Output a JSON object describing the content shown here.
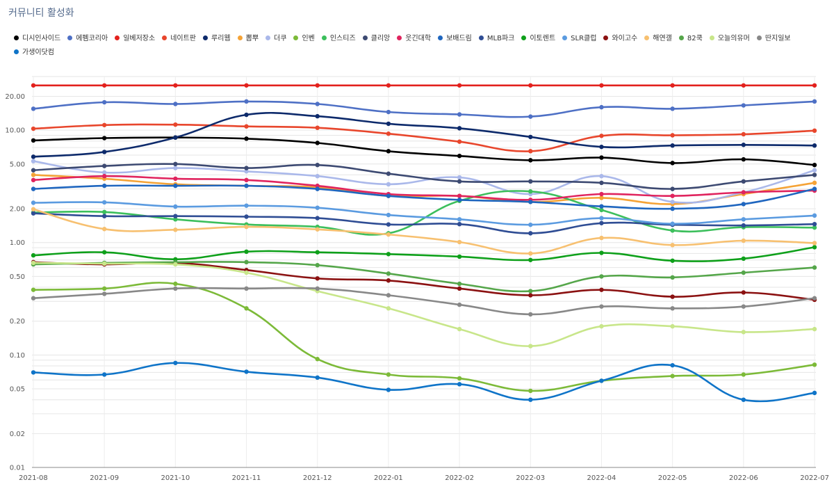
{
  "title": "커뮤니티 활성화",
  "chart_data": {
    "type": "line",
    "title": "커뮤니티 활성화",
    "yscale": "log",
    "ylim": [
      0.01,
      30
    ],
    "grid": true,
    "legend_position": "top",
    "yticks": [
      "20.00",
      "10.00",
      "5.00",
      "2.00",
      "1.00",
      "0.50",
      "0.20",
      "0.10",
      "0.05",
      "0.02",
      "0.01"
    ],
    "categories": [
      "2021-08",
      "2021-09",
      "2021-10",
      "2021-11",
      "2021-12",
      "2022-01",
      "2022-02",
      "2022-03",
      "2022-04",
      "2022-05",
      "2022-06",
      "2022-07"
    ],
    "series": [
      {
        "name": "디시인사이드",
        "color": "#000000",
        "values": [
          8.1,
          8.5,
          8.6,
          8.4,
          7.7,
          6.5,
          5.9,
          5.4,
          5.7,
          5.1,
          5.5,
          4.9
        ]
      },
      {
        "name": "에펨코리아",
        "color": "#4e70c5",
        "values": [
          15.5,
          17.7,
          17.1,
          18.0,
          17.1,
          14.5,
          13.8,
          13.2,
          16.0,
          15.5,
          16.6,
          18.0
        ]
      },
      {
        "name": "일베저장소",
        "color": "#e3211d",
        "values": [
          25,
          25,
          25,
          25,
          25,
          25,
          25,
          25,
          25,
          25,
          25,
          25
        ]
      },
      {
        "name": "네이트판",
        "color": "#e8462c",
        "values": [
          10.3,
          11.1,
          11.2,
          10.8,
          10.5,
          9.3,
          7.9,
          6.5,
          8.9,
          9.0,
          9.2,
          9.9
        ]
      },
      {
        "name": "루리웹",
        "color": "#0d2a6b",
        "values": [
          5.8,
          6.4,
          8.6,
          13.7,
          13.3,
          11.4,
          10.4,
          8.7,
          7.1,
          7.3,
          7.4,
          7.3
        ]
      },
      {
        "name": "뽐뿌",
        "color": "#f5a336",
        "values": [
          4.0,
          3.7,
          3.3,
          3.2,
          3.1,
          2.6,
          2.6,
          2.3,
          2.5,
          2.2,
          2.7,
          3.4
        ]
      },
      {
        "name": "더쿠",
        "color": "#aab8ea",
        "values": [
          5.3,
          4.2,
          4.6,
          4.3,
          3.9,
          3.3,
          3.8,
          2.7,
          3.9,
          2.3,
          2.8,
          4.4
        ]
      },
      {
        "name": "인벤",
        "color": "#7cba38",
        "values": [
          0.38,
          0.39,
          0.43,
          0.26,
          0.092,
          0.067,
          0.062,
          0.048,
          0.059,
          0.065,
          0.067,
          0.082
        ]
      },
      {
        "name": "인스티즈",
        "color": "#3cbf5c",
        "values": [
          1.85,
          1.87,
          1.61,
          1.45,
          1.38,
          1.21,
          2.35,
          2.85,
          1.95,
          1.28,
          1.37,
          1.36
        ]
      },
      {
        "name": "클리앙",
        "color": "#3d4a72",
        "values": [
          4.4,
          4.8,
          5.0,
          4.6,
          4.9,
          4.1,
          3.5,
          3.5,
          3.4,
          3.0,
          3.5,
          4.0
        ]
      },
      {
        "name": "웃긴대학",
        "color": "#e0245e",
        "values": [
          3.6,
          3.9,
          3.7,
          3.6,
          3.2,
          2.7,
          2.6,
          2.4,
          2.7,
          2.6,
          2.8,
          2.9
        ]
      },
      {
        "name": "보배드림",
        "color": "#1f66bf",
        "values": [
          3.0,
          3.2,
          3.2,
          3.2,
          3.0,
          2.6,
          2.4,
          2.3,
          2.1,
          2.0,
          2.2,
          3.0
        ]
      },
      {
        "name": "MLB파크",
        "color": "#2f4d94",
        "values": [
          1.82,
          1.72,
          1.72,
          1.7,
          1.65,
          1.45,
          1.46,
          1.21,
          1.49,
          1.44,
          1.42,
          1.46
        ]
      },
      {
        "name": "이토렌트",
        "color": "#0ea01a",
        "values": [
          0.77,
          0.82,
          0.71,
          0.83,
          0.82,
          0.79,
          0.75,
          0.7,
          0.81,
          0.69,
          0.72,
          0.91
        ]
      },
      {
        "name": "SLR클럽",
        "color": "#5b9be0",
        "values": [
          2.26,
          2.28,
          2.09,
          2.13,
          2.04,
          1.76,
          1.61,
          1.44,
          1.65,
          1.47,
          1.61,
          1.74
        ]
      },
      {
        "name": "와이고수",
        "color": "#8b1111",
        "values": [
          0.67,
          0.64,
          0.66,
          0.57,
          0.48,
          0.46,
          0.39,
          0.34,
          0.38,
          0.33,
          0.36,
          0.31
        ]
      },
      {
        "name": "해연갤",
        "color": "#f7c070",
        "values": [
          1.98,
          1.32,
          1.3,
          1.38,
          1.31,
          1.18,
          1.01,
          0.8,
          1.1,
          0.95,
          1.04,
          0.99
        ]
      },
      {
        "name": "82쿡",
        "color": "#55a64a",
        "values": [
          0.64,
          0.66,
          0.67,
          0.67,
          0.63,
          0.53,
          0.43,
          0.37,
          0.5,
          0.49,
          0.54,
          0.6
        ]
      },
      {
        "name": "오늘의유머",
        "color": "#c8e68a",
        "values": [
          0.66,
          0.65,
          0.64,
          0.54,
          0.37,
          0.26,
          0.17,
          0.12,
          0.18,
          0.18,
          0.16,
          0.17
        ]
      },
      {
        "name": "딴지일보",
        "color": "#888888",
        "values": [
          0.32,
          0.35,
          0.39,
          0.39,
          0.39,
          0.34,
          0.28,
          0.23,
          0.27,
          0.26,
          0.27,
          0.32
        ]
      },
      {
        "name": "가생이닷컴",
        "color": "#0f74c8",
        "values": [
          0.07,
          0.067,
          0.085,
          0.071,
          0.063,
          0.049,
          0.055,
          0.04,
          0.059,
          0.081,
          0.04,
          0.046
        ]
      }
    ]
  }
}
